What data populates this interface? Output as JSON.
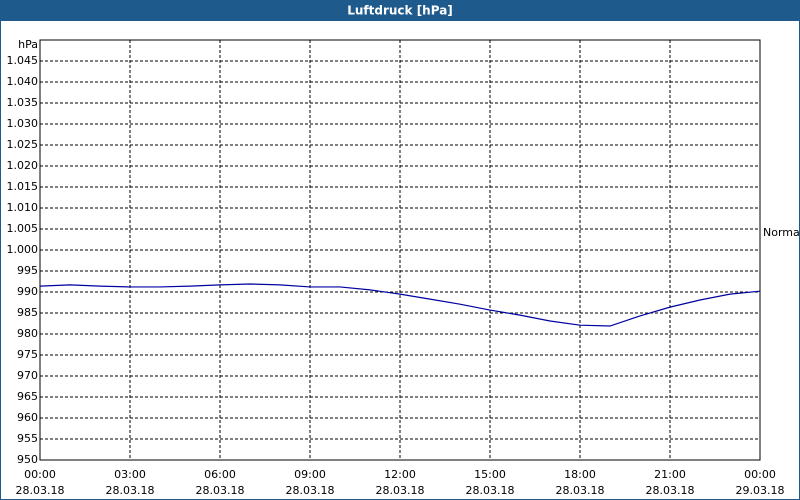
{
  "chart_data": {
    "type": "line",
    "title": "Luftdruck [hPa]",
    "y_unit": "hPa",
    "x": [
      0,
      1,
      2,
      3,
      4,
      5,
      6,
      7,
      8,
      9,
      10,
      11,
      12,
      13,
      14,
      15,
      16,
      17,
      18,
      19,
      20,
      21,
      22,
      23,
      24
    ],
    "series": [
      {
        "color": "#0000a0",
        "values": [
          991.4,
          991.7,
          991.4,
          991.2,
          991.2,
          991.4,
          991.7,
          991.9,
          991.7,
          991.2,
          991.2,
          990.5,
          989.5,
          988.3,
          987.1,
          985.7,
          984.5,
          983.1,
          982.1,
          981.9,
          984.3,
          986.4,
          988.1,
          989.5,
          990.2
        ]
      }
    ],
    "xlim": [
      0,
      24
    ],
    "xticks": [
      {
        "value": 0,
        "label": [
          "00:00",
          "28.03.18"
        ]
      },
      {
        "value": 3,
        "label": [
          "03:00",
          "28.03.18"
        ]
      },
      {
        "value": 6,
        "label": [
          "06:00",
          "28.03.18"
        ]
      },
      {
        "value": 9,
        "label": [
          "09:00",
          "28.03.18"
        ]
      },
      {
        "value": 12,
        "label": [
          "12:00",
          "28.03.18"
        ]
      },
      {
        "value": 15,
        "label": [
          "15:00",
          "28.03.18"
        ]
      },
      {
        "value": 18,
        "label": [
          "18:00",
          "28.03.18"
        ]
      },
      {
        "value": 21,
        "label": [
          "21:00",
          "28.03.18"
        ]
      },
      {
        "value": 24,
        "label": [
          "00:00",
          "29.03.18"
        ]
      }
    ],
    "ylim": [
      950,
      1050
    ],
    "yticks": [
      950,
      955,
      960,
      965,
      970,
      975,
      980,
      985,
      990,
      995,
      {
        "value": 1000,
        "label": "1.000"
      },
      {
        "value": 1005,
        "label": "1.005"
      },
      {
        "value": 1010,
        "label": "1.010"
      },
      {
        "value": 1015,
        "label": "1.015"
      },
      {
        "value": 1020,
        "label": "1.020"
      },
      {
        "value": 1025,
        "label": "1.025"
      },
      {
        "value": 1030,
        "label": "1.030"
      },
      {
        "value": 1035,
        "label": "1.035"
      },
      {
        "value": 1040,
        "label": "1.040"
      },
      {
        "value": 1045,
        "label": "1.045"
      }
    ],
    "normal": {
      "label": "Normal",
      "value": 1004
    },
    "grid": true
  }
}
